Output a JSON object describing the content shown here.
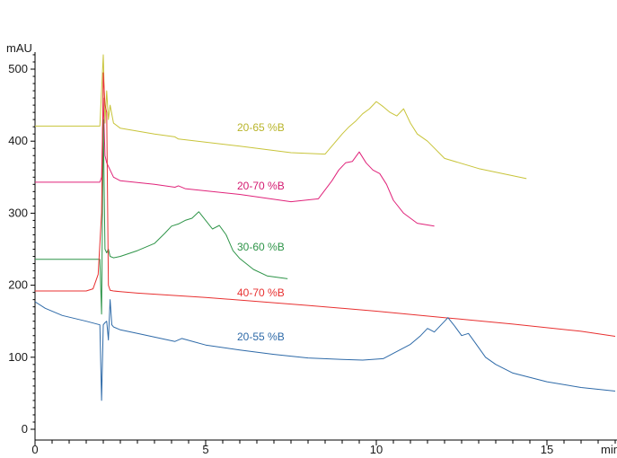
{
  "chart_data": {
    "type": "line",
    "ylabel": "mAU",
    "xlabel": "min",
    "xlim": [
      0,
      17
    ],
    "ylim": [
      -10,
      520
    ],
    "x_ticks": [
      0,
      5,
      10,
      15
    ],
    "y_ticks": [
      0,
      100,
      200,
      300,
      400,
      500
    ],
    "grid": false,
    "series": [
      {
        "name": "20-65 %B",
        "color": "#c8c43a",
        "x": [
          0,
          1.9,
          2.0,
          2.05,
          2.1,
          2.15,
          2.2,
          2.3,
          2.5,
          3.5,
          4.1,
          4.2,
          4.4,
          6,
          7.5,
          8.5,
          9.0,
          9.2,
          9.4,
          9.6,
          9.8,
          10.0,
          10.2,
          10.4,
          10.6,
          10.8,
          11.0,
          11.2,
          11.5,
          12.0,
          13.0,
          14.4
        ],
        "y": [
          421,
          421,
          520,
          425,
          470,
          430,
          450,
          425,
          418,
          410,
          406,
          403,
          402,
          393,
          384,
          382,
          410,
          420,
          428,
          438,
          445,
          455,
          448,
          440,
          435,
          445,
          425,
          410,
          400,
          376,
          362,
          348
        ]
      },
      {
        "name": "20-70 %B",
        "color": "#e0237a",
        "x": [
          0,
          1.9,
          1.95,
          2.0,
          2.05,
          2.1,
          2.15,
          2.2,
          2.3,
          2.5,
          3.5,
          4.1,
          4.2,
          4.4,
          6,
          7.5,
          8.3,
          8.7,
          8.9,
          9.1,
          9.3,
          9.5,
          9.7,
          9.9,
          10.1,
          10.3,
          10.5,
          10.8,
          11.2,
          11.7
        ],
        "y": [
          343,
          343,
          350,
          460,
          380,
          370,
          365,
          360,
          350,
          345,
          340,
          336,
          338,
          334,
          326,
          316,
          320,
          345,
          360,
          370,
          372,
          385,
          370,
          360,
          355,
          340,
          318,
          300,
          286,
          282
        ]
      },
      {
        "name": "30-60 %B",
        "color": "#2e9448",
        "x": [
          0,
          1.9,
          1.95,
          2.0,
          2.05,
          2.1,
          2.15,
          2.2,
          2.3,
          2.5,
          3.0,
          3.5,
          3.8,
          4.0,
          4.2,
          4.4,
          4.6,
          4.8,
          5.0,
          5.2,
          5.4,
          5.6,
          5.8,
          6.0,
          6.4,
          6.8,
          7.4
        ],
        "y": [
          236,
          236,
          160,
          430,
          250,
          245,
          250,
          240,
          238,
          240,
          248,
          258,
          272,
          282,
          285,
          290,
          293,
          302,
          290,
          278,
          283,
          270,
          248,
          237,
          222,
          213,
          209
        ]
      },
      {
        "name": "40-70 %B",
        "color": "#e83030",
        "x": [
          0,
          1.5,
          1.7,
          1.85,
          1.95,
          2.0,
          2.05,
          2.1,
          2.15,
          2.2,
          2.3,
          2.5,
          3.0,
          5,
          8,
          10,
          12,
          14,
          16,
          17
        ],
        "y": [
          192,
          192,
          195,
          215,
          300,
          495,
          450,
          440,
          200,
          193,
          192,
          191,
          189,
          183,
          172,
          164,
          155,
          146,
          136,
          129
        ]
      },
      {
        "name": "20-55 %B",
        "color": "#2e6aa8",
        "x": [
          0,
          0.3,
          0.8,
          1.5,
          1.9,
          1.95,
          2.0,
          2.05,
          2.1,
          2.15,
          2.2,
          2.25,
          2.3,
          2.5,
          3.0,
          4.1,
          4.3,
          5,
          6,
          7,
          8,
          9,
          9.6,
          10.2,
          10.6,
          11.0,
          11.3,
          11.5,
          11.7,
          11.9,
          12.1,
          12.3,
          12.5,
          12.7,
          12.9,
          13.2,
          13.5,
          14.0,
          15.0,
          16.0,
          17.0
        ],
        "y": [
          177,
          168,
          158,
          150,
          145,
          40,
          145,
          148,
          150,
          124,
          180,
          145,
          142,
          138,
          133,
          122,
          126,
          117,
          110,
          104,
          99,
          97,
          96,
          98,
          108,
          118,
          130,
          140,
          135,
          145,
          155,
          143,
          130,
          133,
          120,
          100,
          90,
          78,
          66,
          58,
          53
        ]
      }
    ]
  },
  "labels": {
    "s1": "20-65 %B",
    "s2": "20-70 %B",
    "s3": "30-60 %B",
    "s4": "40-70 %B",
    "s5": "20-55 %B",
    "unit_y": "mAU",
    "unit_x": "min"
  }
}
